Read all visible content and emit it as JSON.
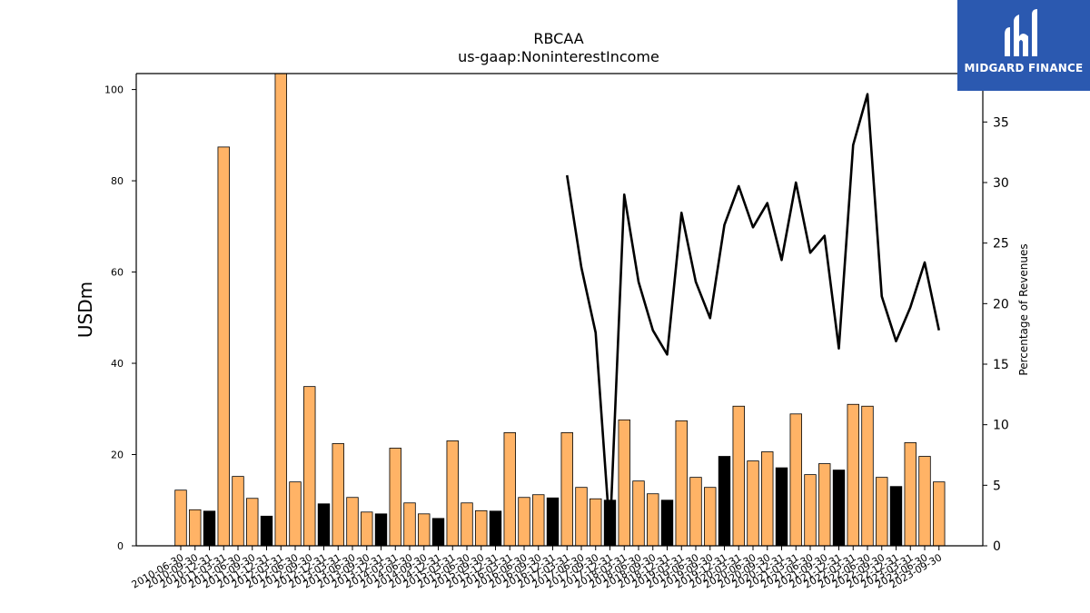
{
  "chart_data": {
    "type": "bar",
    "title": "RBCAA",
    "subtitle": "us-gaap:NoninterestIncome",
    "ylabel": "USDm",
    "y2label": "Percentage of Revenues",
    "ylim": [
      0,
      103.5
    ],
    "y2lim": [
      0,
      39.0
    ],
    "yticks": [
      0,
      20,
      40,
      60,
      80,
      100
    ],
    "y2ticks": [
      0,
      5,
      10,
      15,
      20,
      25,
      30,
      35
    ],
    "categories": [
      "2010-06-30",
      "2010-09-30",
      "2010-12-31",
      "2011-03-31",
      "2011-06-30",
      "2011-09-30",
      "2011-12-31",
      "2012-03-31",
      "2012-06-30",
      "2012-09-30",
      "2012-12-31",
      "2013-03-31",
      "2013-06-30",
      "2013-09-30",
      "2013-12-31",
      "2014-03-31",
      "2014-06-30",
      "2014-09-30",
      "2014-12-31",
      "2015-03-31",
      "2015-06-30",
      "2015-09-30",
      "2015-12-31",
      "2016-03-31",
      "2016-06-30",
      "2016-09-30",
      "2016-12-31",
      "2017-03-31",
      "2017-06-30",
      "2017-09-30",
      "2017-12-31",
      "2018-03-31",
      "2018-06-30",
      "2018-09-30",
      "2018-12-31",
      "2019-03-31",
      "2019-06-30",
      "2019-09-30",
      "2019-12-31",
      "2020-03-31",
      "2020-06-30",
      "2020-09-30",
      "2020-12-31",
      "2021-03-31",
      "2021-06-30",
      "2021-09-30",
      "2021-12-31",
      "2022-03-31",
      "2022-06-30",
      "2022-09-30",
      "2022-12-31",
      "2023-03-31",
      "2023-06-30",
      "2023-09-30"
    ],
    "values": [
      12.2,
      7.9,
      7.6,
      87.4,
      15.2,
      10.4,
      6.5,
      103.5,
      14.0,
      34.9,
      9.2,
      22.4,
      10.6,
      7.4,
      7.0,
      21.4,
      9.4,
      7.0,
      6.0,
      23.0,
      9.4,
      7.7,
      7.6,
      24.8,
      10.6,
      11.2,
      10.5,
      24.8,
      12.8,
      10.3,
      10.0,
      27.6,
      14.2,
      11.4,
      10.0,
      27.4,
      15.0,
      12.8,
      19.6,
      30.6,
      18.6,
      20.6,
      17.1,
      28.9,
      15.6,
      18.0,
      16.6,
      31.0,
      30.6,
      15.0,
      13.0,
      22.6,
      19.6,
      14.0
    ],
    "highlight": [
      false,
      false,
      true,
      false,
      false,
      false,
      true,
      false,
      false,
      false,
      true,
      false,
      false,
      false,
      true,
      false,
      false,
      false,
      true,
      false,
      false,
      false,
      true,
      false,
      false,
      false,
      true,
      false,
      false,
      false,
      true,
      false,
      false,
      false,
      true,
      false,
      false,
      false,
      true,
      false,
      false,
      false,
      true,
      false,
      false,
      false,
      true,
      false,
      false,
      false,
      true,
      false,
      false,
      false
    ],
    "line_values": [
      null,
      null,
      null,
      null,
      null,
      null,
      null,
      null,
      null,
      null,
      null,
      null,
      null,
      null,
      null,
      null,
      null,
      null,
      null,
      null,
      null,
      null,
      null,
      null,
      null,
      null,
      null,
      30.6,
      23.0,
      17.6,
      1.0,
      29.0,
      21.8,
      17.8,
      15.8,
      27.5,
      21.8,
      18.8,
      26.5,
      29.7,
      26.3,
      28.3,
      23.6,
      30.0,
      24.2,
      25.6,
      16.3,
      33.1,
      37.3,
      20.6,
      16.9,
      19.7,
      23.4,
      17.8
    ],
    "colors": {
      "bar": "#ffb366",
      "bar_highlight": "#000000",
      "bar_edge": "#000000",
      "line": "#000000"
    },
    "grid": false
  },
  "logo": {
    "text": "MIDGARD FINANCE",
    "background": "#2b59b0"
  }
}
